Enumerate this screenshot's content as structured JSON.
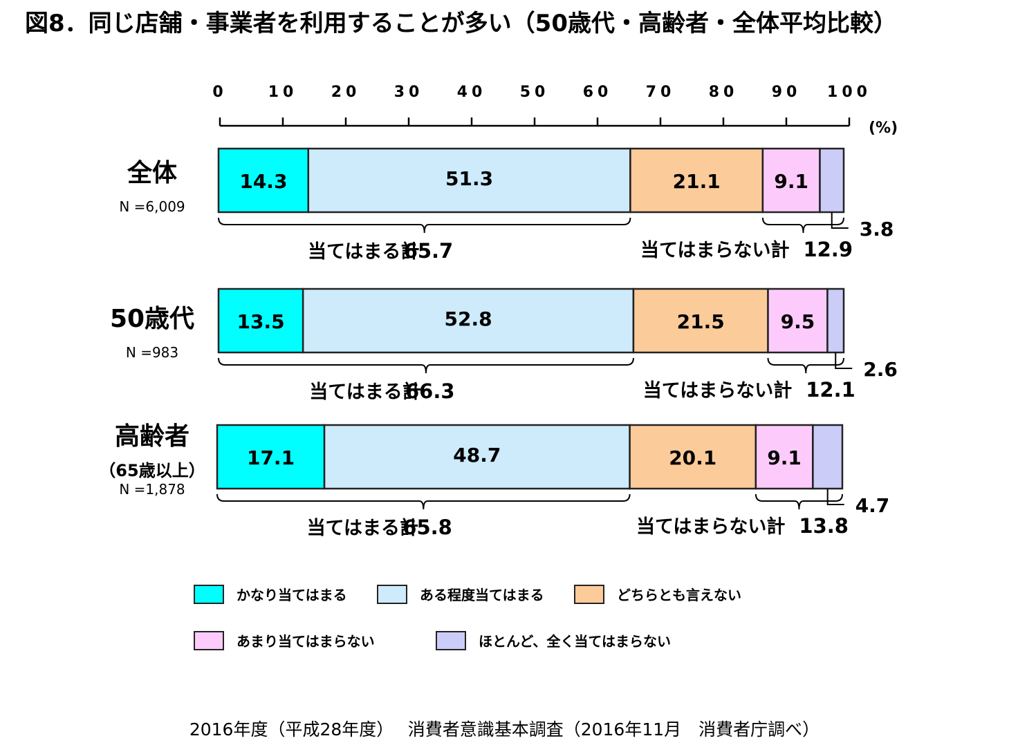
{
  "title": "図8．同じ店舗・事業者を利用することが多い（50歳代・高齢者・全体平均比較）",
  "chart_data": {
    "type": "bar",
    "orientation": "horizontal-stacked",
    "xlim": [
      0,
      100
    ],
    "x_ticks": [
      "0",
      "10",
      "20",
      "30",
      "40",
      "50",
      "60",
      "70",
      "80",
      "90",
      "100"
    ],
    "unit_label": "(%)",
    "series": [
      {
        "name": "かなり当てはまる",
        "color": "#00ffff",
        "values": [
          14.3,
          13.5,
          17.1
        ]
      },
      {
        "name": "ある程度当てはまる",
        "color": "#cdebfb",
        "values": [
          51.3,
          52.8,
          48.7
        ]
      },
      {
        "name": "どちらとも言えない",
        "color": "#fccb9a",
        "values": [
          21.1,
          21.5,
          20.1
        ]
      },
      {
        "name": "あまり当てはまらない",
        "color": "#fccbfb",
        "values": [
          9.1,
          9.5,
          9.1
        ]
      },
      {
        "name": "ほとんど、全く当てはまらない",
        "color": "#ccccf9",
        "values": [
          3.8,
          2.6,
          4.7
        ]
      }
    ],
    "categories": [
      {
        "label": "全体",
        "sublabel": "",
        "n": "N =6,009"
      },
      {
        "label": "50歳代",
        "sublabel": "",
        "n": "N =983"
      },
      {
        "label": "高齢者",
        "sublabel": "（65歳以上）",
        "n": "N =1,878"
      }
    ],
    "data_labels": [
      [
        "14.3",
        "51.3",
        "21.1",
        "9.1",
        "3.8"
      ],
      [
        "13.5",
        "52.8",
        "21.5",
        "9.5",
        "2.6"
      ],
      [
        "17.1",
        "48.7",
        "20.1",
        "9.1",
        "4.7"
      ]
    ],
    "totals": [
      {
        "applies_label": "当てはまる計",
        "applies_value": "65.7",
        "not_label": "当てはまらない計",
        "not_value": "12.9"
      },
      {
        "applies_label": "当てはまる計",
        "applies_value": "66.3",
        "not_label": "当てはまらない計",
        "not_value": "12.1"
      },
      {
        "applies_label": "当てはまる計",
        "applies_value": "65.8",
        "not_label": "当てはまらない計",
        "not_value": "13.8"
      }
    ]
  },
  "legend": [
    {
      "label": "かなり当てはまる",
      "color": "#00ffff"
    },
    {
      "label": "ある程度当てはまる",
      "color": "#cdebfb"
    },
    {
      "label": "どちらとも言えない",
      "color": "#fccb9a"
    },
    {
      "label": "あまり当てはまらない",
      "color": "#fccbfb"
    },
    {
      "label": "ほとんど、全く当てはまらない",
      "color": "#ccccf9"
    }
  ],
  "source": "2016年度（平成28年度）　 消費者意識基本調査（2016年11月　消費者庁調べ）"
}
